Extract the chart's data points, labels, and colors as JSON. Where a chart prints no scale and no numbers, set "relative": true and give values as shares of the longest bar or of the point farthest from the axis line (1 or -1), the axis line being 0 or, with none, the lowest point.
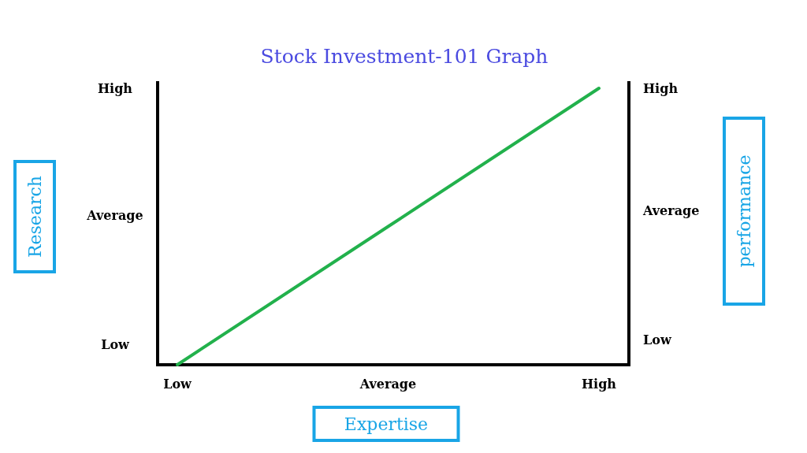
{
  "chart_data": {
    "type": "line",
    "title": "Stock Investment-101 Graph",
    "xlabel": "Expertise",
    "categories": [
      "Low",
      "Average",
      "High"
    ],
    "relative": true,
    "series": [
      {
        "color": "#22b14c",
        "values": [
          0,
          0.5,
          1
        ]
      }
    ],
    "annotations": [
      "High",
      "Average",
      "Low",
      "High",
      "Average",
      "Low",
      "Research",
      "performance"
    ],
    "grid": false,
    "marker": "none",
    "line_style": "solid"
  }
}
